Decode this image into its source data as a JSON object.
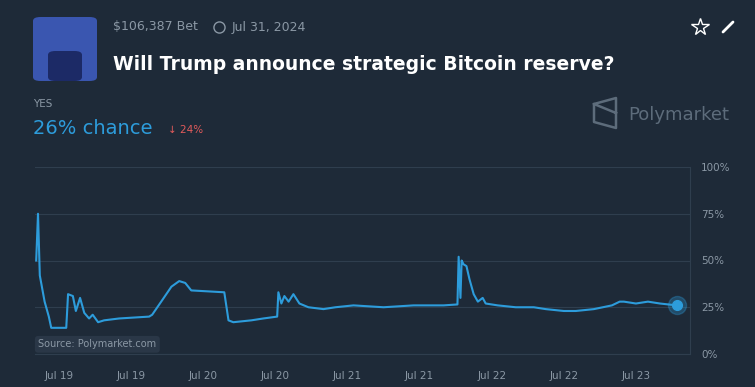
{
  "chart_data": {
    "type": "line",
    "title": "Will Trump announce strategic Bitcoin reserve?",
    "annotations": {
      "volume": "$106,387 Bet",
      "date": "Jul 31, 2024",
      "outcome": "YES",
      "probability": "26% chance",
      "change": "↓ 24%",
      "brand": "Polymarket",
      "source": "Source: Polymarket.com"
    },
    "color": "#2d9cdb",
    "x": [
      2.2,
      2.5,
      2.8,
      3.2,
      3.6,
      4.3,
      4.7,
      7.2,
      7.5,
      8.3,
      8.8,
      9.5,
      10.2,
      11.0,
      11.6,
      12.5,
      13.5,
      16,
      21,
      21.5,
      23,
      24.7,
      26,
      27,
      28,
      33.5,
      34.2,
      35,
      38,
      40,
      42.3,
      42.5,
      43,
      43.5,
      44.2,
      45,
      46,
      47.5,
      50,
      52,
      55,
      60,
      65,
      70,
      72.3,
      72.5,
      72.8,
      73,
      73.3,
      73.8,
      74.3,
      75,
      75.7,
      76.5,
      77,
      79,
      82,
      85,
      87,
      90,
      92,
      95,
      98,
      99.3,
      100,
      102,
      104,
      106,
      108.8
    ],
    "values": [
      50,
      75,
      42,
      35,
      28,
      20,
      14,
      14,
      32,
      31,
      23,
      30,
      22,
      19,
      21,
      17,
      18,
      19,
      20,
      21,
      28,
      36,
      39,
      38,
      34,
      33,
      18,
      17,
      18,
      19,
      20,
      33,
      27,
      31,
      28,
      32,
      27,
      25,
      24,
      25,
      26,
      25,
      26,
      26,
      26.5,
      52,
      30,
      50,
      48,
      47,
      40,
      32,
      28,
      30,
      27,
      26,
      25,
      25,
      24,
      23,
      23,
      24,
      26,
      28,
      28,
      27,
      28,
      27,
      26
    ],
    "xlim": [
      2,
      111
    ],
    "xticks": [
      {
        "value": 6,
        "label": "Jul 19"
      },
      {
        "value": 18,
        "label": "Jul 19"
      },
      {
        "value": 30,
        "label": "Jul 20"
      },
      {
        "value": 42,
        "label": "Jul 20"
      },
      {
        "value": 54,
        "label": "Jul 21"
      },
      {
        "value": 66,
        "label": "Jul 21"
      },
      {
        "value": 78,
        "label": "Jul 22"
      },
      {
        "value": 90,
        "label": "Jul 22"
      },
      {
        "value": 102,
        "label": "Jul 23"
      }
    ],
    "ylim": [
      0,
      100
    ],
    "yticks": [
      {
        "value": 0,
        "label": "0%"
      },
      {
        "value": 25,
        "label": "25%"
      },
      {
        "value": 50,
        "label": "50%"
      },
      {
        "value": 75,
        "label": "75%"
      },
      {
        "value": 100,
        "label": "100%"
      }
    ],
    "grid": true
  }
}
